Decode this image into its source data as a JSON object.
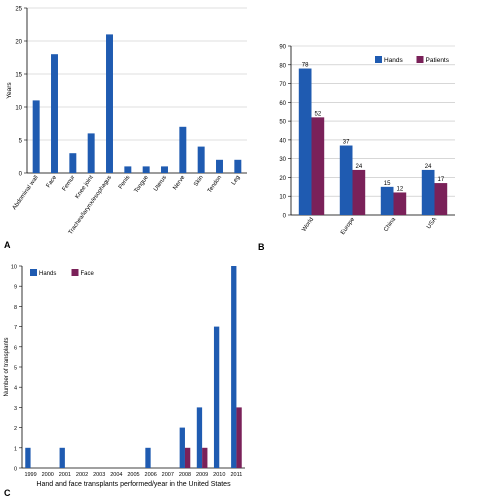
{
  "colors": {
    "blue": "#1f5bb1",
    "purple": "#7a2159",
    "axis": "#000000",
    "grid": "#bfbfbf"
  },
  "chart_data": [
    {
      "panel_label": "A",
      "type": "bar",
      "title": "",
      "xlabel": "",
      "ylabel": "Years",
      "ylim": [
        0,
        25
      ],
      "yticks": [
        0,
        5,
        10,
        15,
        20,
        25
      ],
      "grid": true,
      "categories": [
        "Abdominal wall",
        "Face",
        "Femur",
        "Knee joint",
        "Trachea/larynx/esophagus",
        "Penis",
        "Tongue",
        "Uterus",
        "Nerve",
        "Skin",
        "Tendon",
        "Leg"
      ],
      "series": [
        {
          "color": "#1f5bb1",
          "values": [
            11,
            18,
            3,
            6,
            21,
            1,
            1,
            1,
            7,
            4,
            2,
            2
          ]
        }
      ]
    },
    {
      "panel_label": "B",
      "type": "bar",
      "title": "",
      "xlabel": "",
      "ylabel": "",
      "ylim": [
        0,
        90
      ],
      "yticks": [
        0,
        10,
        20,
        30,
        40,
        50,
        60,
        70,
        80,
        90
      ],
      "grid": true,
      "legend": "top-right",
      "categories": [
        "World",
        "Europe",
        "China",
        "USA"
      ],
      "series": [
        {
          "name": "Hands",
          "color": "#1f5bb1",
          "values": [
            78,
            37,
            15,
            24
          ],
          "labels": [
            "78",
            "37",
            "15",
            "24"
          ]
        },
        {
          "name": "Patients",
          "color": "#7a2159",
          "values": [
            52,
            24,
            12,
            17
          ],
          "labels": [
            "52",
            "24",
            "12",
            "17"
          ]
        }
      ]
    },
    {
      "panel_label": "C",
      "type": "bar",
      "title": "",
      "xlabel": "Hand and face transplants performed/year in the United States",
      "ylabel": "Number of transplants",
      "ylim": [
        0,
        10
      ],
      "yticks": [
        0,
        1,
        2,
        3,
        4,
        5,
        6,
        7,
        8,
        9,
        10
      ],
      "grid": false,
      "legend": "top-left",
      "categories": [
        "1999",
        "2000",
        "2001",
        "2002",
        "2003",
        "2004",
        "2005",
        "2006",
        "2007",
        "2008",
        "2009",
        "2010",
        "2011"
      ],
      "series": [
        {
          "name": "Hands",
          "color": "#1f5bb1",
          "values": [
            1,
            0,
            1,
            0,
            0,
            0,
            0,
            1,
            0,
            2,
            3,
            7,
            10
          ]
        },
        {
          "name": "Face",
          "color": "#7a2159",
          "values": [
            0,
            0,
            0,
            0,
            0,
            0,
            0,
            0,
            0,
            1,
            1,
            0,
            3
          ]
        }
      ]
    }
  ]
}
